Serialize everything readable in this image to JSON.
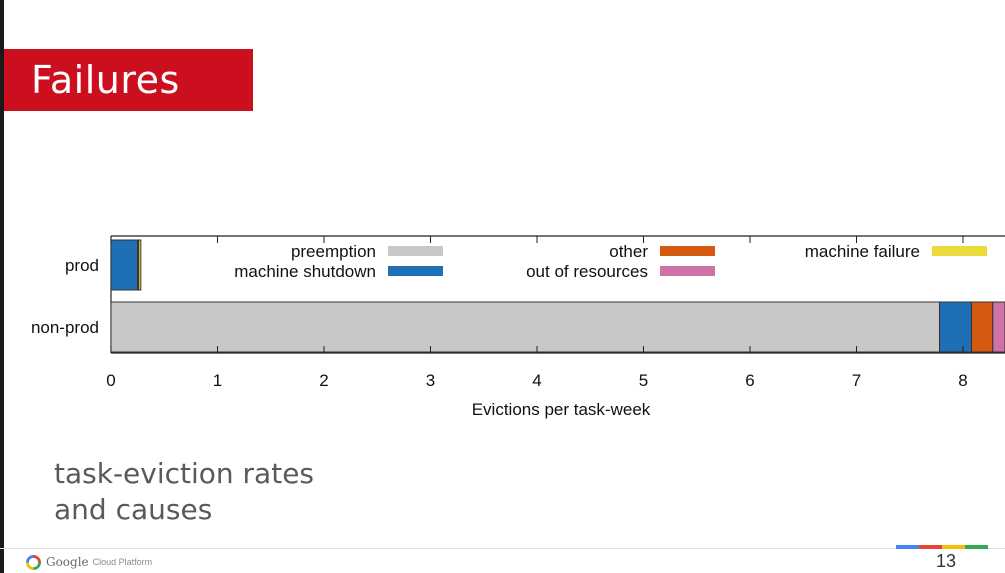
{
  "slide": {
    "title": "Failures",
    "caption_line1": "task-eviction rates",
    "caption_line2": "and causes",
    "page_number": "13",
    "brand": {
      "name": "Google",
      "product": "Cloud Platform",
      "strip_colors": [
        "#4285f4",
        "#ea4335",
        "#fbbc05",
        "#34a853"
      ]
    },
    "title_color": "#cc0f1f"
  },
  "chart_data": {
    "type": "bar",
    "orientation": "horizontal",
    "stacked": true,
    "categories": [
      "prod",
      "non-prod"
    ],
    "xlabel": "Evictions per task-week",
    "xlim": [
      0,
      8.4
    ],
    "xticks": [
      0,
      1,
      2,
      3,
      4,
      5,
      6,
      7,
      8
    ],
    "series": [
      {
        "name": "preemption",
        "color": "#c8c8c8",
        "values": [
          0.0,
          7.78
        ]
      },
      {
        "name": "machine shutdown",
        "color": "#1f6fb4",
        "values": [
          0.25,
          0.3
        ]
      },
      {
        "name": "other",
        "color": "#d45a10",
        "values": [
          0.01,
          0.2
        ]
      },
      {
        "name": "out of resources",
        "color": "#cf72a8",
        "values": [
          0.0,
          0.12
        ]
      },
      {
        "name": "machine failure",
        "color": "#ecd93a",
        "values": [
          0.02,
          0.0
        ]
      }
    ],
    "legend_placement": "top",
    "grid": false
  }
}
